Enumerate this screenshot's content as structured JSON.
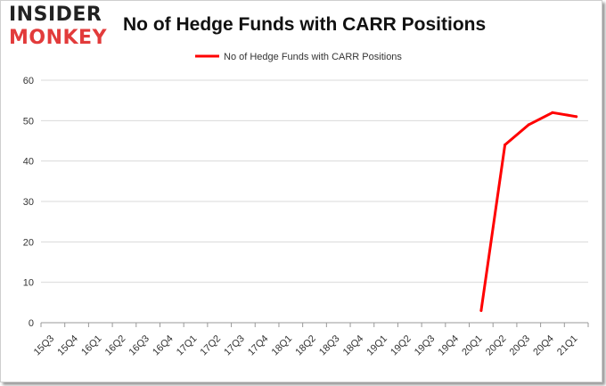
{
  "logo": {
    "line1": "INSIDER",
    "line2": "MONKEY"
  },
  "chart_data": {
    "type": "line",
    "title": "No of Hedge Funds with CARR Positions",
    "xlabel": "",
    "ylabel": "",
    "categories": [
      "15Q3",
      "15Q4",
      "16Q1",
      "16Q2",
      "16Q3",
      "16Q4",
      "17Q1",
      "17Q2",
      "17Q3",
      "17Q4",
      "18Q1",
      "18Q2",
      "18Q3",
      "18Q4",
      "19Q1",
      "19Q2",
      "19Q3",
      "19Q4",
      "20Q1",
      "20Q2",
      "20Q3",
      "20Q4",
      "21Q1"
    ],
    "series": [
      {
        "name": "No of Hedge Funds with CARR Positions",
        "color": "#ff0000",
        "values": [
          null,
          null,
          null,
          null,
          null,
          null,
          null,
          null,
          null,
          null,
          null,
          null,
          null,
          null,
          null,
          null,
          null,
          null,
          3,
          44,
          49,
          52,
          51
        ]
      }
    ],
    "ylim": [
      0,
      60
    ],
    "yticks": [
      0,
      10,
      20,
      30,
      40,
      50,
      60
    ],
    "grid": true,
    "legend": "top-center"
  }
}
